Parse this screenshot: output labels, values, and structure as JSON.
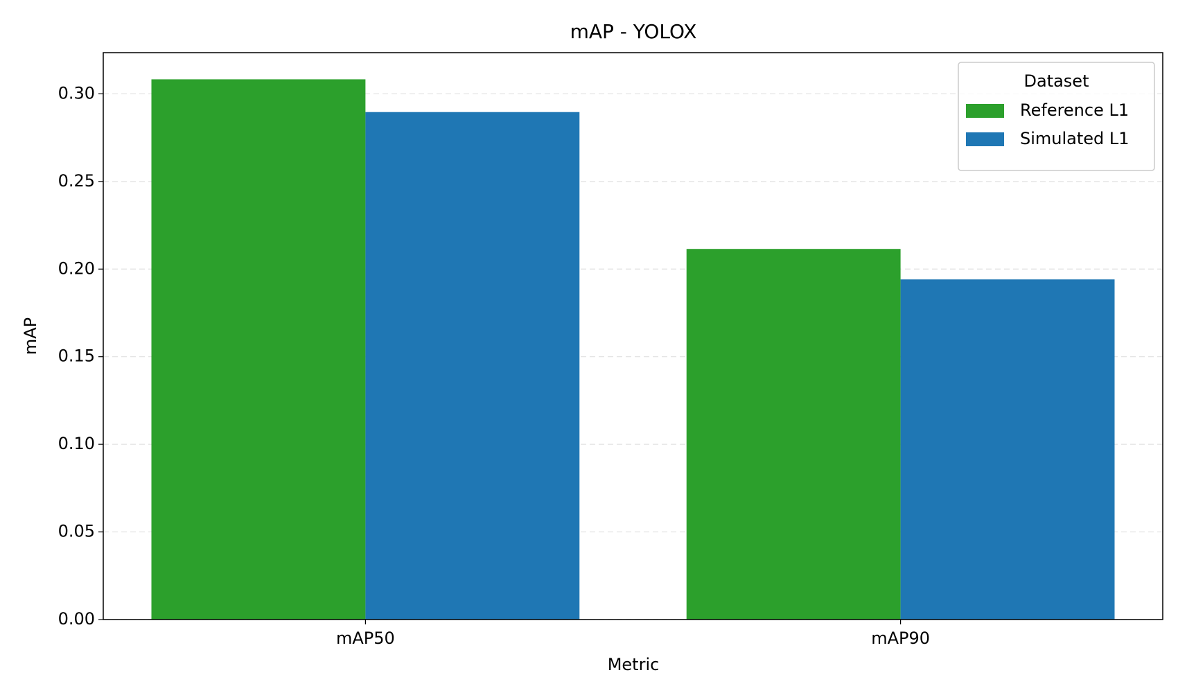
{
  "chart_data": {
    "type": "bar",
    "title": "mAP - YOLOX",
    "xlabel": "Metric",
    "ylabel": "mAP",
    "categories": [
      "mAP50",
      "mAP90"
    ],
    "series": [
      {
        "name": "Reference L1",
        "color": "#2ca02c",
        "values": [
          0.3083,
          0.2115
        ]
      },
      {
        "name": "Simulated L1",
        "color": "#1f77b4",
        "values": [
          0.2896,
          0.1941
        ]
      }
    ],
    "ylim": [
      0,
      0.3235
    ],
    "yticks": [
      {
        "value": 0,
        "label": "0.00"
      },
      {
        "value": 0.05,
        "label": "0.05"
      },
      {
        "value": 0.1,
        "label": "0.10"
      },
      {
        "value": 0.15,
        "label": "0.15"
      },
      {
        "value": 0.2,
        "label": "0.20"
      },
      {
        "value": 0.25,
        "label": "0.25"
      },
      {
        "value": 0.3,
        "label": "0.30"
      }
    ],
    "grid": true,
    "legend_title": "Dataset",
    "legend_position": "upper right"
  }
}
